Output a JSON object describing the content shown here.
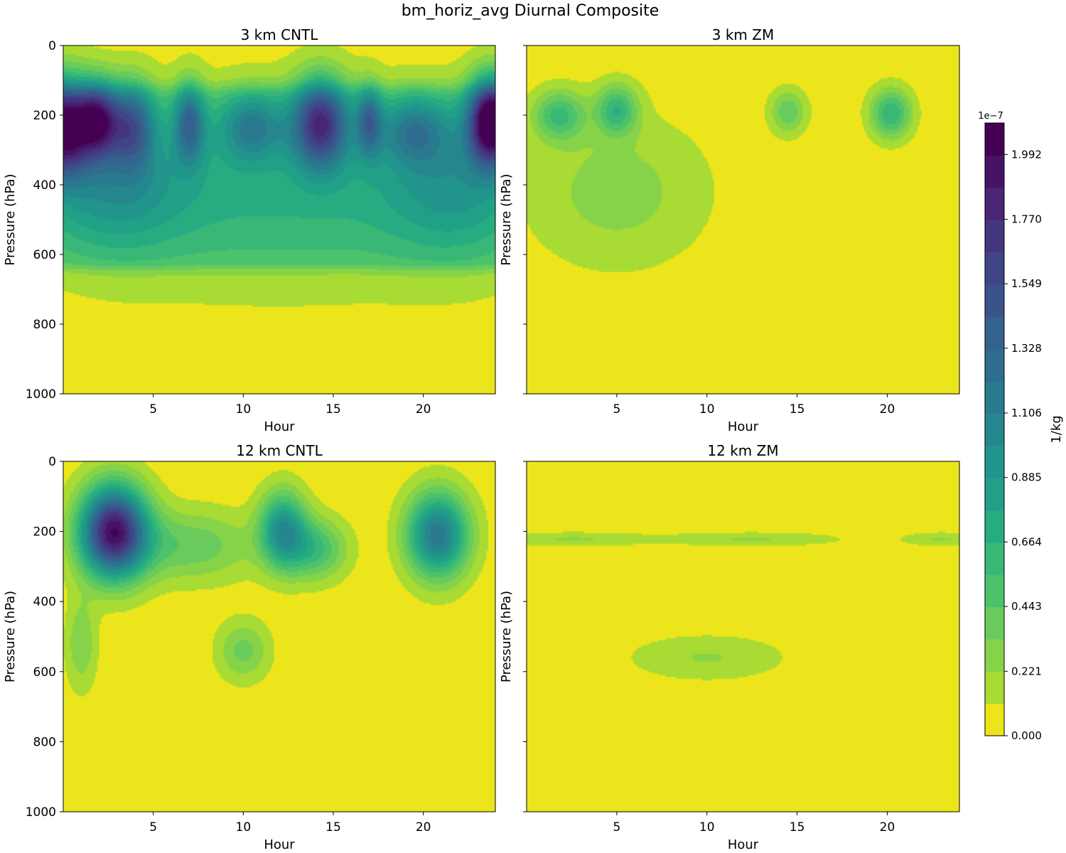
{
  "figure": {
    "title": "bm_horiz_avg Diurnal Composite"
  },
  "colors": {
    "viridis": [
      "#440154",
      "#482475",
      "#414487",
      "#355f8d",
      "#2a788e",
      "#21918c",
      "#22a884",
      "#44bf70",
      "#7ad151",
      "#bddf26",
      "#fde725"
    ],
    "background_level": "#ede51b"
  },
  "colorbar": {
    "label": "1/kg",
    "exponent_label": "1e−7",
    "range": [
      0.0,
      2.1
    ],
    "n_levels": 19,
    "ticks": [
      0.0,
      0.221,
      0.443,
      0.664,
      0.885,
      1.106,
      1.328,
      1.549,
      1.77,
      1.992
    ],
    "tick_labels": [
      "0.000",
      "0.221",
      "0.443",
      "0.664",
      "0.885",
      "1.106",
      "1.328",
      "1.549",
      "1.770",
      "1.992"
    ]
  },
  "chart_data": [
    {
      "type": "heatmap",
      "title": "3 km CNTL",
      "xlabel": "Hour",
      "ylabel": "Pressure (hPa)",
      "xlim": [
        0,
        24
      ],
      "ylim": [
        1000,
        0
      ],
      "xticks": [
        5,
        10,
        15,
        20
      ],
      "xtick_labels": [
        "5",
        "10",
        "15",
        "20"
      ],
      "yticks": [
        0,
        200,
        400,
        600,
        800,
        1000
      ],
      "ytick_labels": [
        "0",
        "200",
        "400",
        "600",
        "800",
        "1000"
      ],
      "show_yticklabels": true,
      "units_scale": "1e-7 1/kg",
      "features": [
        {
          "hour": 0.0,
          "pressure": 230,
          "peak": 1.75,
          "width_hours": 1.0,
          "depth_hpa": 95
        },
        {
          "hour": 1.9,
          "pressure": 210,
          "peak": 1.35,
          "width_hours": 0.8,
          "depth_hpa": 75
        },
        {
          "hour": 3.8,
          "pressure": 225,
          "peak": 0.95,
          "width_hours": 0.9,
          "depth_hpa": 85
        },
        {
          "hour": 7.0,
          "pressure": 220,
          "peak": 0.9,
          "width_hours": 0.6,
          "depth_hpa": 80
        },
        {
          "hour": 10.5,
          "pressure": 230,
          "peak": 0.7,
          "width_hours": 1.3,
          "depth_hpa": 70
        },
        {
          "hour": 14.3,
          "pressure": 220,
          "peak": 1.4,
          "width_hours": 1.1,
          "depth_hpa": 90
        },
        {
          "hour": 17.0,
          "pressure": 215,
          "peak": 0.8,
          "width_hours": 0.5,
          "depth_hpa": 70
        },
        {
          "hour": 19.5,
          "pressure": 240,
          "peak": 0.65,
          "width_hours": 1.4,
          "depth_hpa": 70
        },
        {
          "hour": 23.8,
          "pressure": 215,
          "peak": 2.0,
          "width_hours": 0.9,
          "depth_hpa": 85
        },
        {
          "hour": 2.5,
          "pressure": 400,
          "peak": 0.55,
          "width_hours": 3.0,
          "depth_hpa": 140
        },
        {
          "hour": 12.0,
          "pressure": 420,
          "peak": 0.4,
          "width_hours": 8.0,
          "depth_hpa": 180
        },
        {
          "hour": 22.0,
          "pressure": 400,
          "peak": 0.5,
          "width_hours": 3.0,
          "depth_hpa": 150
        }
      ],
      "background_level_value": 0.28,
      "layer_pressure": [
        120,
        640
      ]
    },
    {
      "type": "heatmap",
      "title": "3 km ZM",
      "xlabel": "Hour",
      "ylabel": "Pressure (hPa)",
      "xlim": [
        0,
        24
      ],
      "ylim": [
        1000,
        0
      ],
      "xticks": [
        5,
        10,
        15,
        20
      ],
      "xtick_labels": [
        "5",
        "10",
        "15",
        "20"
      ],
      "yticks": [
        0,
        200,
        400,
        600,
        800,
        1000
      ],
      "ytick_labels": [],
      "show_yticklabels": false,
      "units_scale": "1e-7 1/kg",
      "features": [
        {
          "hour": 1.8,
          "pressure": 200,
          "peak": 0.55,
          "width_hours": 1.0,
          "depth_hpa": 50
        },
        {
          "hour": 5.0,
          "pressure": 185,
          "peak": 0.6,
          "width_hours": 0.8,
          "depth_hpa": 50
        },
        {
          "hour": 14.5,
          "pressure": 190,
          "peak": 0.4,
          "width_hours": 0.7,
          "depth_hpa": 45
        },
        {
          "hour": 20.2,
          "pressure": 195,
          "peak": 0.65,
          "width_hours": 0.8,
          "depth_hpa": 50
        },
        {
          "hour": 5.0,
          "pressure": 420,
          "peak": 0.25,
          "width_hours": 3.5,
          "depth_hpa": 150
        }
      ]
    },
    {
      "type": "heatmap",
      "title": "12 km CNTL",
      "xlabel": "Hour",
      "ylabel": "Pressure (hPa)",
      "xlim": [
        0,
        24
      ],
      "ylim": [
        1000,
        0
      ],
      "xticks": [
        5,
        10,
        15,
        20
      ],
      "xtick_labels": [
        "5",
        "10",
        "15",
        "20"
      ],
      "yticks": [
        0,
        200,
        400,
        600,
        800,
        1000
      ],
      "ytick_labels": [
        "0",
        "200",
        "400",
        "600",
        "800",
        "1000"
      ],
      "show_yticklabels": true,
      "units_scale": "1e-7 1/kg",
      "features": [
        {
          "hour": 2.8,
          "pressure": 200,
          "peak": 2.0,
          "width_hours": 1.3,
          "depth_hpa": 90
        },
        {
          "hour": 12.2,
          "pressure": 195,
          "peak": 0.95,
          "width_hours": 0.9,
          "depth_hpa": 75
        },
        {
          "hour": 14.0,
          "pressure": 250,
          "peak": 0.55,
          "width_hours": 1.2,
          "depth_hpa": 60
        },
        {
          "hour": 20.8,
          "pressure": 210,
          "peak": 1.2,
          "width_hours": 1.2,
          "depth_hpa": 85
        },
        {
          "hour": 7.0,
          "pressure": 240,
          "peak": 0.4,
          "width_hours": 2.5,
          "depth_hpa": 70
        },
        {
          "hour": 10.0,
          "pressure": 540,
          "peak": 0.35,
          "width_hours": 1.0,
          "depth_hpa": 60
        },
        {
          "hour": 1.0,
          "pressure": 520,
          "peak": 0.3,
          "width_hours": 0.6,
          "depth_hpa": 90
        }
      ]
    },
    {
      "type": "heatmap",
      "title": "12 km ZM",
      "xlabel": "Hour",
      "ylabel": "Pressure (hPa)",
      "xlim": [
        0,
        24
      ],
      "ylim": [
        1000,
        0
      ],
      "xticks": [
        5,
        10,
        15,
        20
      ],
      "xtick_labels": [
        "5",
        "10",
        "15",
        "20"
      ],
      "yticks": [
        0,
        200,
        400,
        600,
        800,
        1000
      ],
      "ytick_labels": [],
      "show_yticklabels": false,
      "units_scale": "1e-7 1/kg",
      "features": [
        {
          "hour": 2.5,
          "pressure": 222,
          "peak": 0.2,
          "width_hours": 3.0,
          "depth_hpa": 14
        },
        {
          "hour": 12.5,
          "pressure": 222,
          "peak": 0.2,
          "width_hours": 3.5,
          "depth_hpa": 14
        },
        {
          "hour": 23.0,
          "pressure": 222,
          "peak": 0.2,
          "width_hours": 1.5,
          "depth_hpa": 14
        },
        {
          "hour": 10.0,
          "pressure": 560,
          "peak": 0.2,
          "width_hours": 3.0,
          "depth_hpa": 45
        }
      ]
    }
  ]
}
